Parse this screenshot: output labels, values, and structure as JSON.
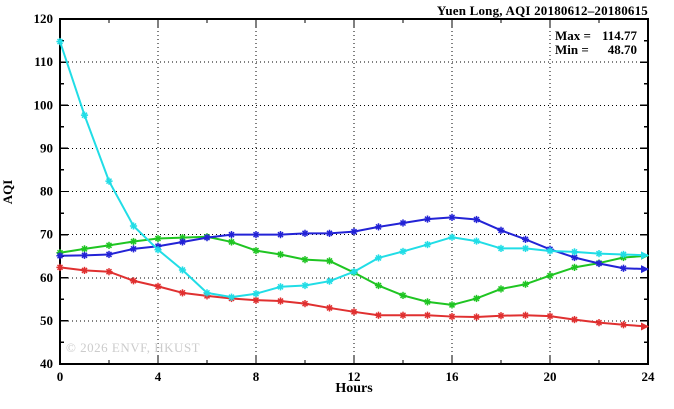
{
  "title": "Yuen Long, AQI 20180612–20180615",
  "stats": {
    "max_label": "Max =",
    "max_value": "114.77",
    "min_label": "Min =",
    "min_value": "48.70"
  },
  "watermark": "© 2026 ENVF, HKUST",
  "chart_data": {
    "type": "line",
    "title": "Yuen Long, AQI 20180612–20180615",
    "xlabel": "Hours",
    "ylabel": "AQI",
    "xlim": [
      0,
      24
    ],
    "ylim": [
      40,
      120
    ],
    "x_major_ticks": [
      0,
      4,
      8,
      12,
      16,
      20,
      24
    ],
    "x_minor_tick_step": 2,
    "y_major_ticks": [
      40,
      50,
      60,
      70,
      80,
      90,
      100,
      110,
      120
    ],
    "y_minor_tick_step": 5,
    "grid": "dotted black gridlines at x = 4,8,12,16,20 and y = 50..110",
    "legend_position": "none (stats box top-right)",
    "max": 114.77,
    "min": 48.7,
    "x": [
      0,
      1,
      2,
      3,
      4,
      5,
      6,
      7,
      8,
      9,
      10,
      11,
      12,
      13,
      14,
      15,
      16,
      17,
      18,
      19,
      20,
      21,
      22,
      23,
      24
    ],
    "series": [
      {
        "name": "red-line",
        "color": "#e03030",
        "values": [
          62.4,
          61.7,
          61.4,
          59.3,
          58.0,
          56.5,
          55.8,
          55.2,
          54.8,
          54.6,
          54.0,
          53.0,
          52.1,
          51.3,
          51.3,
          51.3,
          51.0,
          50.9,
          51.2,
          51.3,
          51.1,
          50.3,
          49.6,
          49.1,
          48.7
        ]
      },
      {
        "name": "green-line",
        "color": "#1fc522",
        "values": [
          65.8,
          66.7,
          67.5,
          68.4,
          69.1,
          69.3,
          69.5,
          68.3,
          66.3,
          65.4,
          64.2,
          63.9,
          61.2,
          58.2,
          55.9,
          54.4,
          53.7,
          55.2,
          57.4,
          58.5,
          60.5,
          62.4,
          63.4,
          64.7,
          65.1
        ]
      },
      {
        "name": "blue-line",
        "color": "#2323d6",
        "values": [
          65.1,
          65.2,
          65.4,
          66.7,
          67.3,
          68.3,
          69.3,
          70.0,
          70.0,
          70.0,
          70.3,
          70.3,
          70.7,
          71.8,
          72.7,
          73.6,
          74.0,
          73.5,
          71.0,
          68.9,
          66.6,
          64.7,
          63.3,
          62.2,
          62.0
        ]
      },
      {
        "name": "cyan-line",
        "color": "#21dde6",
        "values": [
          114.77,
          97.7,
          82.4,
          72.0,
          66.5,
          61.8,
          56.5,
          55.5,
          56.3,
          57.9,
          58.2,
          59.2,
          61.4,
          64.6,
          66.1,
          67.7,
          69.4,
          68.5,
          66.8,
          66.8,
          66.2,
          66.0,
          65.6,
          65.4,
          65.2
        ]
      }
    ]
  }
}
